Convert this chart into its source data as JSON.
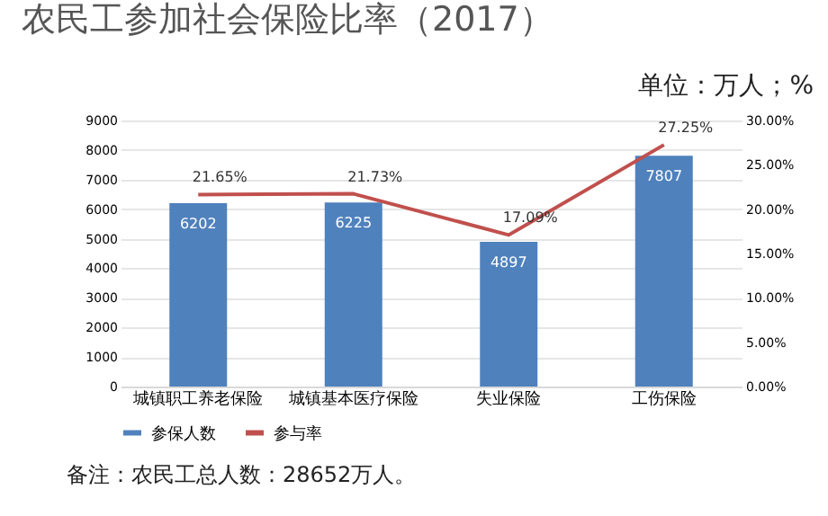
{
  "chart_data": {
    "type": "bar",
    "title": "农民工参加社会保险比率（2017）",
    "subtitle": "单位：万人；%",
    "categories": [
      "城镇职工养老保险",
      "城镇基本医疗保险",
      "失业保险",
      "工伤保险"
    ],
    "series": [
      {
        "name": "参保人数",
        "color": "#4f81bd",
        "values": [
          6202,
          6225,
          4897,
          7807
        ],
        "value_labels": [
          "6202",
          "6225",
          "4897",
          "7807"
        ]
      },
      {
        "name": "参与率",
        "type": "line",
        "axis": "y2",
        "color": "#c0504d",
        "values": [
          21.65,
          21.73,
          17.09,
          27.25
        ],
        "value_labels": [
          "21.65%",
          "21.73%",
          "17.09%",
          "27.25%"
        ]
      }
    ],
    "ylim": [
      0,
      9000
    ],
    "yticks": [
      0,
      1000,
      2000,
      3000,
      4000,
      5000,
      6000,
      7000,
      8000,
      9000
    ],
    "y2lim": [
      0,
      30
    ],
    "y2ticks": [
      {
        "value": 0,
        "label": "0.00%"
      },
      {
        "value": 5,
        "label": "5.00%"
      },
      {
        "value": 10,
        "label": "10.00%"
      },
      {
        "value": 15,
        "label": "15.00%"
      },
      {
        "value": 20,
        "label": "20.00%"
      },
      {
        "value": 25,
        "label": "25.00%"
      },
      {
        "value": 30,
        "label": "30.00%"
      }
    ],
    "grid": "y",
    "legend": "bottom",
    "annotations": [
      "备注：农民工总人数：28652万人。"
    ]
  }
}
